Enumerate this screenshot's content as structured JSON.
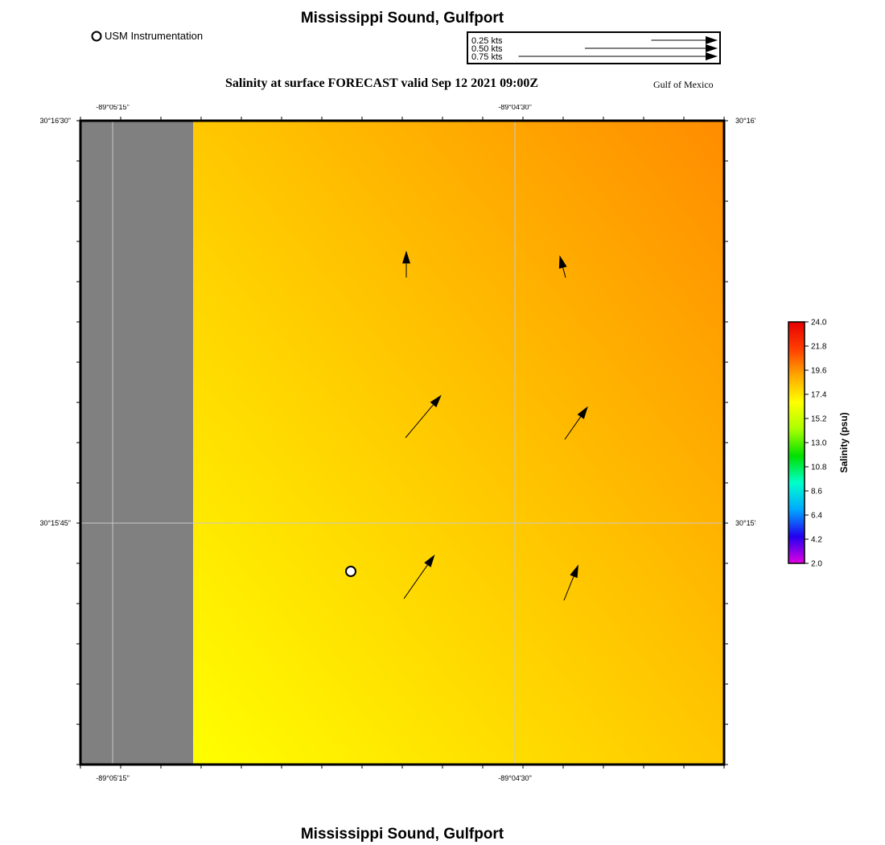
{
  "title": "Mississippi Sound, Gulfport",
  "footer_title": "Mississippi Sound, Gulfport",
  "legend": {
    "station_label": "USM Instrumentation"
  },
  "vector_scale": {
    "entries": [
      {
        "label": "0.25 kts",
        "speed_kts": 0.25
      },
      {
        "label": "0.50 kts",
        "speed_kts": 0.5
      },
      {
        "label": "0.75 kts",
        "speed_kts": 0.75
      }
    ]
  },
  "forecast_title": "Salinity at surface FORECAST valid Sep 12 2021 09:00Z",
  "region_label": "Gulf of Mexico",
  "axes": {
    "lon_ticks": [
      "-89°05'15\"",
      "-89°04'30\""
    ],
    "lat_ticks": [
      "30°16'30\"",
      "30°15'45\""
    ]
  },
  "colorbar": {
    "label": "Salinity (psu)",
    "ticks": [
      "24.0",
      "21.8",
      "19.6",
      "17.4",
      "15.2",
      "13.0",
      "10.8",
      "8.6",
      "6.4",
      "4.2",
      "2.0"
    ],
    "min": 2.0,
    "max": 24.0,
    "colors": [
      "#e200e2",
      "#2200ee",
      "#00a8ff",
      "#00ffcc",
      "#00e000",
      "#aaff00",
      "#ffff00",
      "#ffa800",
      "#ff3d00",
      "#e60000"
    ]
  },
  "field": {
    "land_color": "#808080",
    "top_color": "#ff8c00",
    "bottom_color": "#ffff00"
  },
  "current_vectors": [
    {
      "speed_kts": 0.14,
      "direction_deg": 0
    },
    {
      "speed_kts": 0.12,
      "direction_deg": 345
    },
    {
      "speed_kts": 0.29,
      "direction_deg": 40
    },
    {
      "speed_kts": 0.21,
      "direction_deg": 35
    },
    {
      "speed_kts": 0.28,
      "direction_deg": 35
    },
    {
      "speed_kts": 0.2,
      "direction_deg": 22
    }
  ],
  "station": {
    "name": "USM Instrumentation"
  }
}
